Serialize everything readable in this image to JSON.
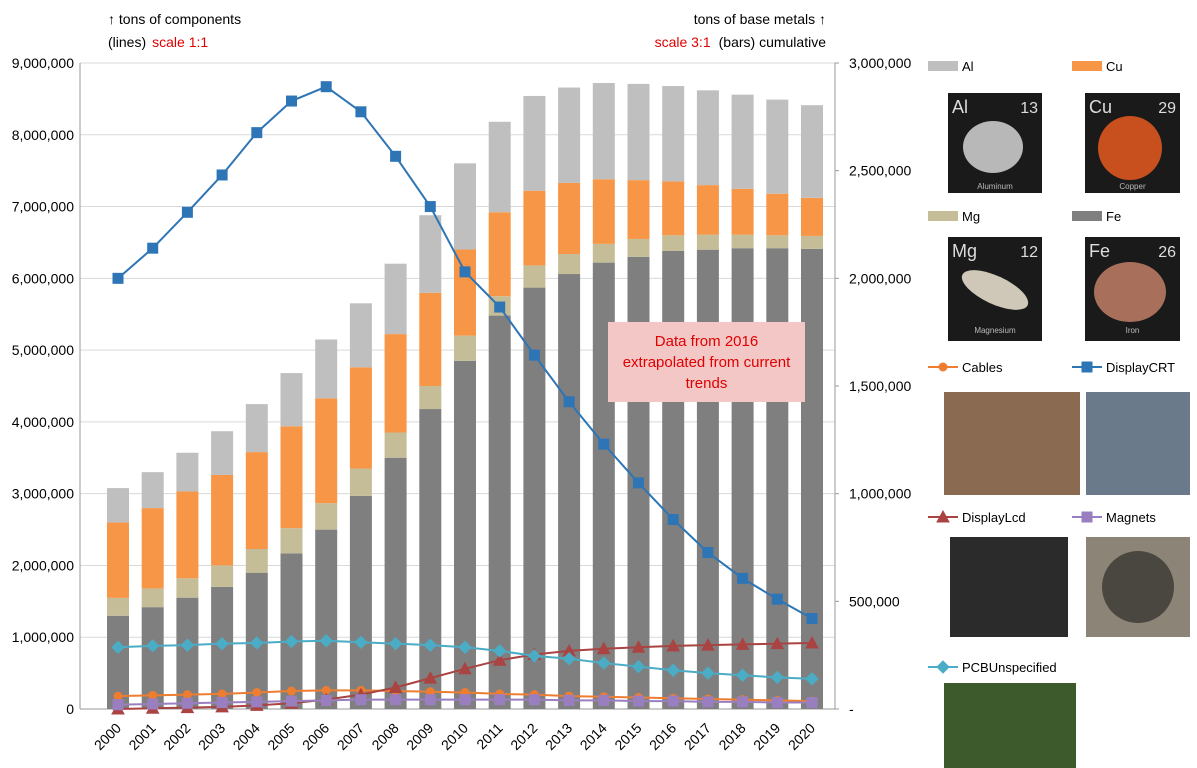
{
  "chart_data": {
    "type": "combo",
    "y_title": "↑ tons of components",
    "y_title_prefix": "(lines)",
    "y_scale_note": "scale 1:1",
    "y2_title": "tons of base metals ↑",
    "y2_scale_note": "scale 3:1",
    "y2_title_suffix": "(bars) cumulative",
    "annotation": "Data from 2016 extrapolated from current trends",
    "categories": [
      "2000",
      "2001",
      "2002",
      "2003",
      "2004",
      "2005",
      "2006",
      "2007",
      "2008",
      "2009",
      "2010",
      "2011",
      "2012",
      "2013",
      "2014",
      "2015",
      "2016",
      "2017",
      "2018",
      "2019",
      "2020"
    ],
    "ylim": [
      0,
      9000000
    ],
    "yticks": [
      0,
      {
        "value": 1000000,
        "label": "1,000,000"
      },
      {
        "value": 2000000,
        "label": "2,000,000"
      },
      {
        "value": 3000000,
        "label": "3,000,000"
      },
      {
        "value": 4000000,
        "label": "4,000,000"
      },
      {
        "value": 5000000,
        "label": "5,000,000"
      },
      {
        "value": 6000000,
        "label": "6,000,000"
      },
      {
        "value": 7000000,
        "label": "7,000,000"
      },
      {
        "value": 8000000,
        "label": "8,000,000"
      },
      {
        "value": 9000000,
        "label": "9,000,000"
      }
    ],
    "y2lim": [
      0,
      3000000
    ],
    "y2ticks": [
      {
        "value": 0,
        "label": "-"
      },
      {
        "value": 500000,
        "label": "500,000"
      },
      {
        "value": 1000000,
        "label": "1,000,000"
      },
      {
        "value": 1500000,
        "label": "1,500,000"
      },
      {
        "value": 2000000,
        "label": "2,000,000"
      },
      {
        "value": 2500000,
        "label": "2,500,000"
      },
      {
        "value": 3000000,
        "label": "3,000,000"
      }
    ],
    "grid": true,
    "series": [
      {
        "name": "Fe",
        "type": "bar",
        "axis": "y2",
        "color": "#7f7f7f",
        "values": [
          433000,
          473000,
          517000,
          567000,
          633000,
          723000,
          833000,
          990000,
          1167000,
          1393000,
          1617000,
          1827000,
          1957000,
          2020000,
          2073000,
          2100000,
          2127000,
          2133000,
          2140000,
          2140000,
          2137000
        ]
      },
      {
        "name": "Mg",
        "type": "bar",
        "axis": "y2",
        "color": "#c4bd97",
        "values": [
          83000,
          87000,
          90000,
          100000,
          110000,
          117000,
          123000,
          127000,
          117000,
          107000,
          117000,
          90000,
          103000,
          93000,
          87000,
          83000,
          73000,
          70000,
          63000,
          60000,
          60000
        ]
      },
      {
        "name": "Cu",
        "type": "bar",
        "axis": "y2",
        "color": "#f79646",
        "values": [
          350000,
          373000,
          403000,
          420000,
          450000,
          473000,
          487000,
          470000,
          457000,
          433000,
          400000,
          390000,
          347000,
          330000,
          300000,
          273000,
          250000,
          230000,
          213000,
          193000,
          177000
        ]
      },
      {
        "name": "Al",
        "type": "bar",
        "axis": "y2",
        "color": "#bfbfbf",
        "values": [
          160000,
          167000,
          180000,
          203000,
          223000,
          247000,
          273000,
          297000,
          327000,
          360000,
          400000,
          420000,
          440000,
          443000,
          447000,
          447000,
          443000,
          440000,
          437000,
          437000,
          430000
        ]
      },
      {
        "name": "Cables",
        "type": "line",
        "marker": "circle",
        "color": "#ed7d31",
        "values": [
          180000,
          190000,
          200000,
          210000,
          230000,
          250000,
          260000,
          260000,
          250000,
          240000,
          230000,
          210000,
          200000,
          180000,
          170000,
          160000,
          150000,
          140000,
          130000,
          120000,
          110000
        ]
      },
      {
        "name": "DisplayCRT",
        "type": "line",
        "marker": "square",
        "color": "#2e75b6",
        "values": [
          6000000,
          6420000,
          6920000,
          7440000,
          8030000,
          8470000,
          8670000,
          8320000,
          7700000,
          7000000,
          6090000,
          5600000,
          4930000,
          4280000,
          3690000,
          3150000,
          2640000,
          2180000,
          1820000,
          1530000,
          1260000
        ]
      },
      {
        "name": "DisplayLcd",
        "type": "line",
        "marker": "triangle",
        "color": "#a94442",
        "values": [
          0,
          10000,
          20000,
          30000,
          50000,
          80000,
          130000,
          200000,
          300000,
          430000,
          560000,
          680000,
          760000,
          810000,
          840000,
          860000,
          880000,
          890000,
          900000,
          910000,
          920000
        ]
      },
      {
        "name": "Magnets",
        "type": "line",
        "marker": "square",
        "color": "#9a7fc0",
        "values": [
          60000,
          70000,
          80000,
          90000,
          100000,
          110000,
          120000,
          130000,
          130000,
          130000,
          130000,
          130000,
          130000,
          120000,
          120000,
          110000,
          110000,
          100000,
          100000,
          90000,
          90000
        ]
      },
      {
        "name": "PCBUnspecified",
        "type": "line",
        "marker": "diamond",
        "color": "#4bacc6",
        "values": [
          860000,
          880000,
          890000,
          910000,
          920000,
          940000,
          950000,
          930000,
          910000,
          890000,
          860000,
          810000,
          740000,
          700000,
          640000,
          590000,
          540000,
          500000,
          470000,
          440000,
          420000
        ]
      }
    ],
    "element_tiles": [
      {
        "symbol": "Al",
        "number": 13,
        "name": "Aluminum"
      },
      {
        "symbol": "Cu",
        "number": 29,
        "name": "Copper"
      },
      {
        "symbol": "Mg",
        "number": 12,
        "name": "Magnesium"
      },
      {
        "symbol": "Fe",
        "number": 26,
        "name": "Iron"
      }
    ]
  }
}
